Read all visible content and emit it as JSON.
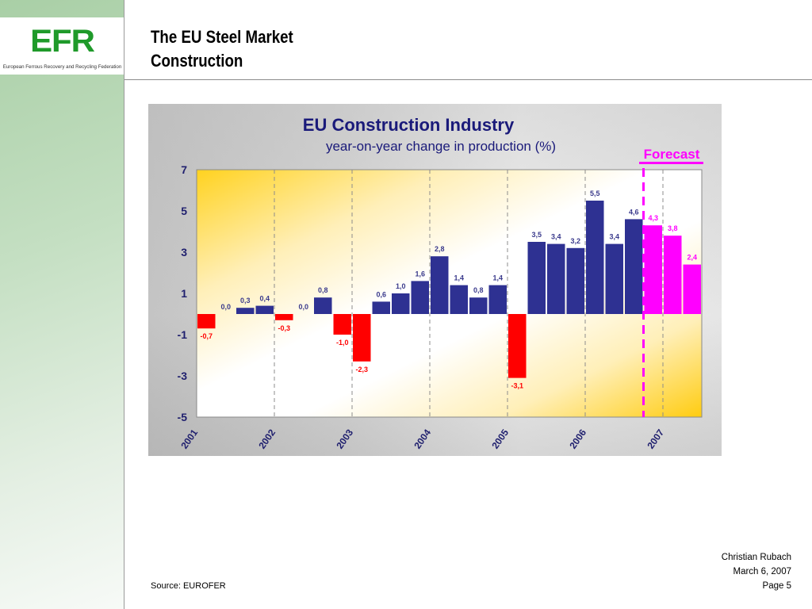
{
  "logo": {
    "text": "EFR",
    "subtitle": "European Ferrous Recovery and Recycling Federation"
  },
  "header": {
    "title_line1": "The EU Steel Market",
    "title_line2": "Construction"
  },
  "footer": {
    "source": "Source: EUROFER",
    "author": "Christian Rubach",
    "date": "March 6, 2007",
    "page": "Page 5"
  },
  "colors": {
    "positive": "#2e3192",
    "negative": "#ff0000",
    "forecast": "#ff00ff",
    "axis_text": "#1f1f6e"
  },
  "chart_data": {
    "type": "bar",
    "title": "EU Construction Industry",
    "subtitle": "year-on-year change in production (%)",
    "annotation": "Forecast",
    "xlabel": "",
    "ylabel": "",
    "ylim": [
      -5,
      7
    ],
    "yticks": [
      7,
      5,
      3,
      1,
      -1,
      -3,
      -5
    ],
    "xtick_labels": [
      "2001",
      "2002",
      "2003",
      "2004",
      "2005",
      "2006",
      "2007"
    ],
    "grid": "vertical dashed at year boundaries",
    "categories": [
      "2001 Q1",
      "2001 Q2",
      "2001 Q3",
      "2001 Q4",
      "2002 Q1",
      "2002 Q2",
      "2002 Q3",
      "2002 Q4",
      "2003 Q1",
      "2003 Q2",
      "2003 Q3",
      "2003 Q4",
      "2004 Q1",
      "2004 Q2",
      "2004 Q3",
      "2004 Q4",
      "2005 Q1",
      "2005 Q2",
      "2005 Q3",
      "2005 Q4",
      "2006 Q1",
      "2006 Q2",
      "2006 Q3",
      "2006 Q4",
      "2007 Q1",
      "2007 Q2"
    ],
    "values": [
      -0.7,
      0.0,
      0.3,
      0.4,
      -0.3,
      0.0,
      0.8,
      -1.0,
      -2.3,
      0.6,
      1.0,
      1.6,
      2.8,
      1.4,
      0.8,
      1.4,
      -3.1,
      3.5,
      3.4,
      3.2,
      5.5,
      3.4,
      4.6,
      4.3,
      3.8,
      2.4
    ],
    "labels": [
      "-0,7",
      "0,0",
      "0,3",
      "0,4",
      "-0,3",
      "0,0",
      "0,8",
      "-1,0",
      "-2,3",
      "0,6",
      "1,0",
      "1,6",
      "2,8",
      "1,4",
      "0,8",
      "1,4",
      "-3,1",
      "3,5",
      "3,4",
      "3,2",
      "5,5",
      "3,4",
      "4,6",
      "4,3",
      "3,8",
      "2,4"
    ],
    "forecast_start_index": 23
  }
}
